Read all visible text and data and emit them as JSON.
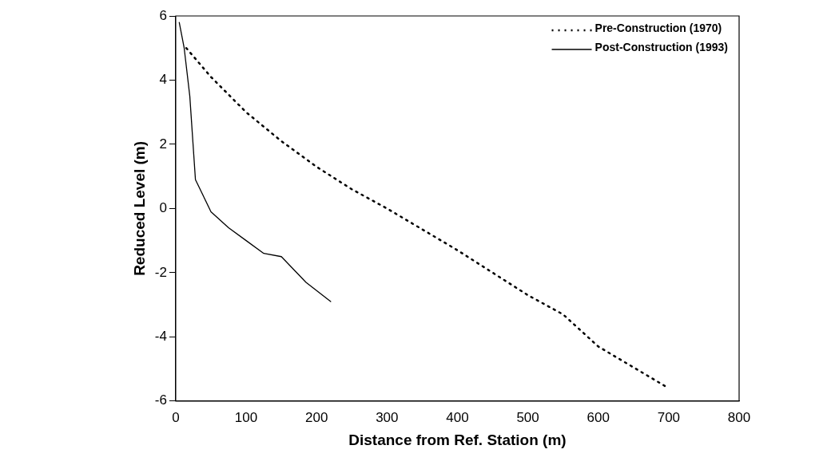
{
  "chart_data": {
    "type": "line",
    "xlabel": "Distance from Ref. Station (m)",
    "ylabel": "Reduced Level (m)",
    "xlim": [
      0,
      800
    ],
    "xticks": [
      0,
      100,
      200,
      300,
      400,
      500,
      600,
      700,
      800
    ],
    "ylim": [
      -6,
      6
    ],
    "yticks": [
      -6,
      -4,
      -2,
      0,
      2,
      4,
      6
    ],
    "grid": false,
    "legend": "top right",
    "marker": "none",
    "series": [
      {
        "name": "Pre-Construction (1970)",
        "color": "#000000",
        "line_style": "dotted",
        "x": [
          15,
          50,
          100,
          150,
          200,
          250,
          300,
          400,
          500,
          550,
          600,
          700
        ],
        "values": [
          5.0,
          4.1,
          3.0,
          2.1,
          1.3,
          0.6,
          0.0,
          -1.3,
          -2.7,
          -3.3,
          -4.3,
          -5.6
        ]
      },
      {
        "name": "Post-Construction (1993)",
        "color": "#000000",
        "line_style": "solid",
        "x": [
          5,
          12,
          20,
          28,
          50,
          75,
          100,
          125,
          150,
          185,
          220
        ],
        "values": [
          5.8,
          5.0,
          3.5,
          0.9,
          -0.1,
          -0.6,
          -1.0,
          -1.4,
          -1.5,
          -2.3,
          -2.9
        ]
      }
    ]
  }
}
